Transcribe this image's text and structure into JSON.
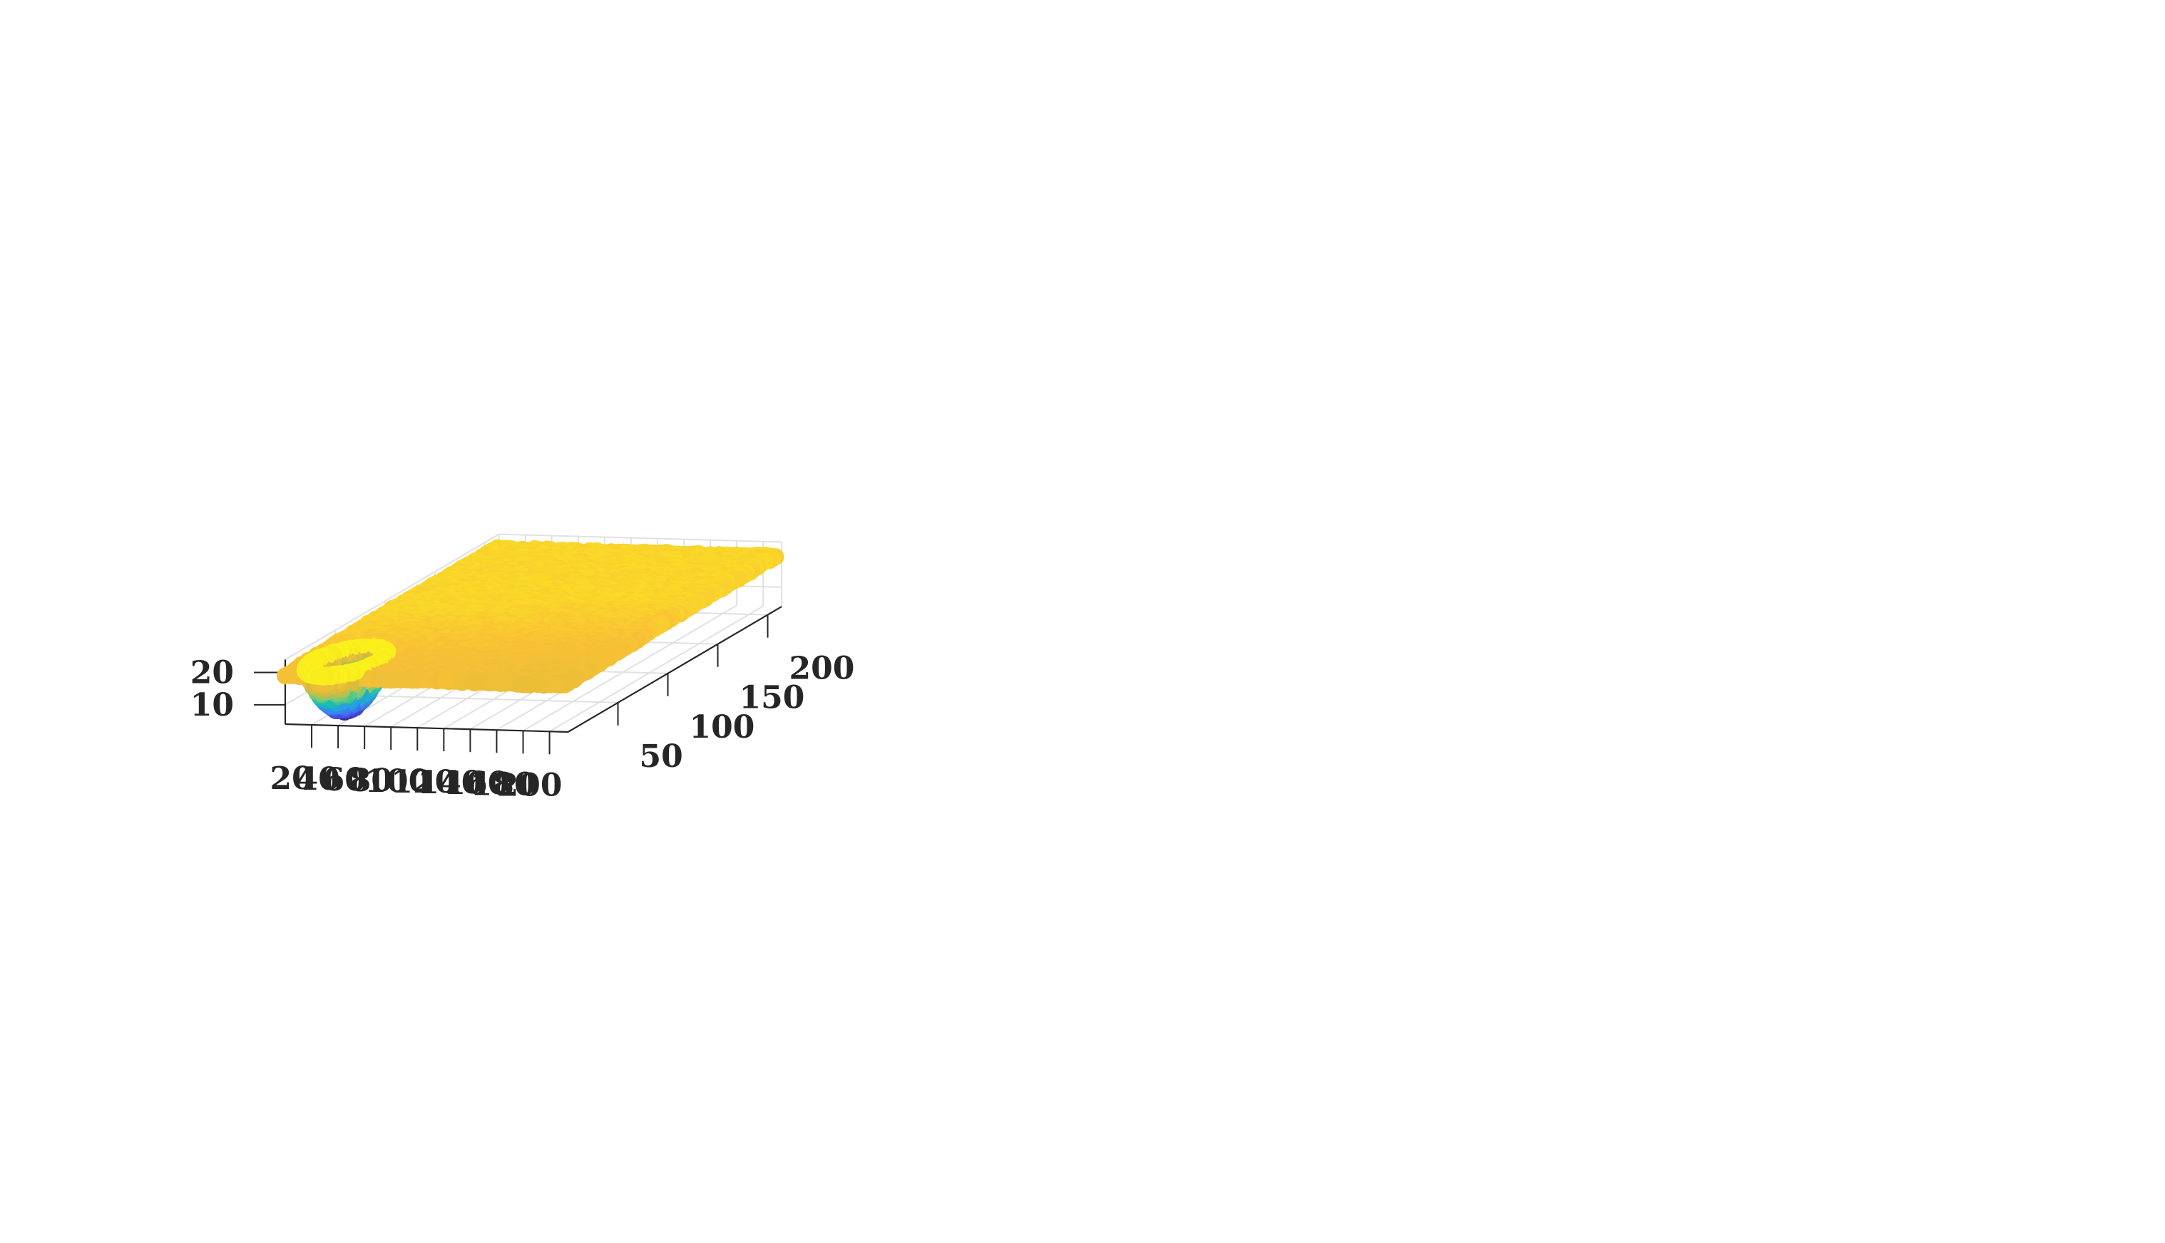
{
  "chart_data": {
    "type": "scatter",
    "dimensions": 3,
    "title": "",
    "xlabel": "",
    "ylabel": "",
    "zlabel": "",
    "x_ticks": [
      20,
      40,
      60,
      80,
      100,
      120,
      140,
      160,
      180,
      200
    ],
    "y_ticks": [
      50,
      100,
      150,
      200
    ],
    "z_ticks": [
      10,
      20
    ],
    "xlim": [
      0,
      214
    ],
    "ylim": [
      0,
      214
    ],
    "zlim": [
      4,
      24
    ],
    "grid": true,
    "colormap": "parula",
    "colormap_colors": [
      "#3e26a8",
      "#4463f6",
      "#2c97e9",
      "#17bfb1",
      "#85cb6c",
      "#d7ba3c",
      "#f9c135",
      "#f9fb15"
    ],
    "surface": {
      "description_values": {
        "plane_x_range": [
          0,
          214
        ],
        "plane_y_range": [
          0,
          214
        ],
        "plane_z": 20,
        "plane_z_near_edge": 18.5
      }
    },
    "hole": {
      "center_x": 35,
      "center_y": 15,
      "rim_radius": 25,
      "rim_z": 21,
      "bottom_z": 6
    }
  }
}
